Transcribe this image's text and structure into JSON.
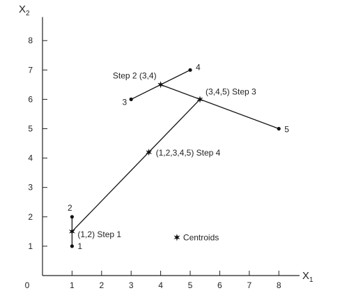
{
  "chart_data": {
    "type": "scatter",
    "title": "",
    "xlabel": "X",
    "xlabel_sub": "1",
    "ylabel": "X",
    "ylabel_sub": "2",
    "xlim": [
      0,
      8.7
    ],
    "ylim": [
      0,
      8.8
    ],
    "x_ticks": [
      1,
      2,
      3,
      4,
      5,
      6,
      7,
      8
    ],
    "y_ticks": [
      1,
      2,
      3,
      4,
      5,
      6,
      7,
      8
    ],
    "origin_label": "0",
    "points": [
      {
        "id": "1",
        "x": 1,
        "y": 1,
        "label": "1"
      },
      {
        "id": "2",
        "x": 1,
        "y": 2,
        "label": "2"
      },
      {
        "id": "3",
        "x": 3,
        "y": 6,
        "label": "3"
      },
      {
        "id": "4",
        "x": 5,
        "y": 7,
        "label": "4"
      },
      {
        "id": "5",
        "x": 8,
        "y": 5,
        "label": "5"
      }
    ],
    "centroids": [
      {
        "id": "c12",
        "x": 1,
        "y": 1.5,
        "label": "(1,2) Step 1"
      },
      {
        "id": "c34",
        "x": 4,
        "y": 6.5,
        "label": "Step 2 (3,4)"
      },
      {
        "id": "c345",
        "x": 5.33,
        "y": 6,
        "label": "(3,4,5) Step 3"
      },
      {
        "id": "c12345",
        "x": 3.6,
        "y": 4.2,
        "label": "(1,2,3,4,5) Step 4"
      }
    ],
    "segments": [
      {
        "from": "2",
        "to": "1"
      },
      {
        "from": "3",
        "to": "4"
      },
      {
        "from": "c34",
        "to": "5"
      },
      {
        "from": "c12",
        "to": "c345"
      }
    ],
    "legend": {
      "label": "Centroids",
      "x": 4.55,
      "y": 1.3
    },
    "grid": false,
    "colors": {
      "ink": "#111111"
    }
  }
}
